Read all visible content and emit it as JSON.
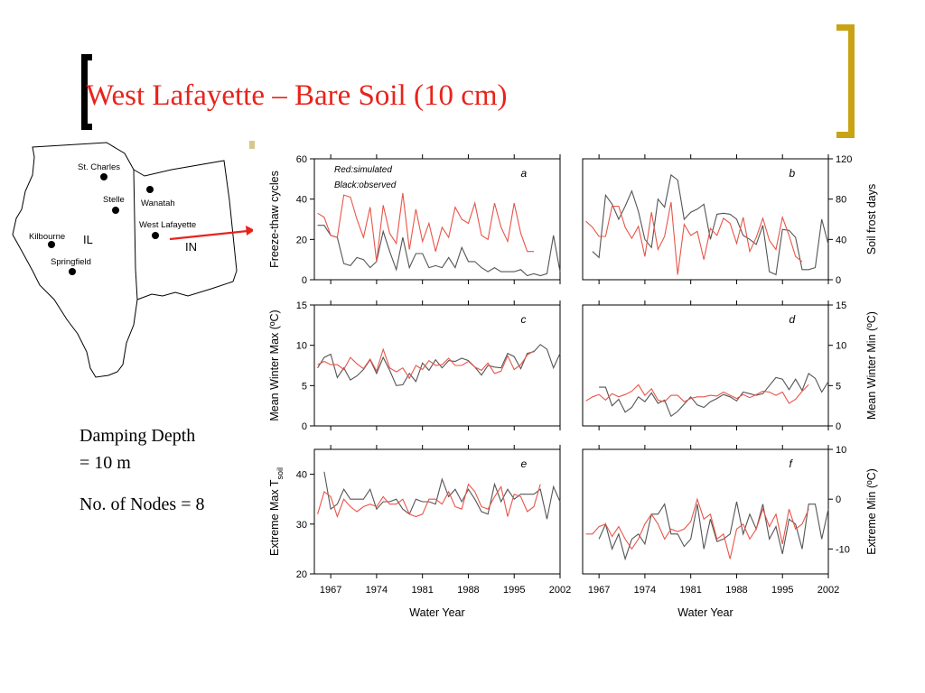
{
  "slide": {
    "title": "West Lafayette – Bare Soil (10 cm)",
    "notes": [
      "Damping Depth",
      "= 10 m",
      "No. of Nodes = 8"
    ],
    "colors": {
      "title": "#e8231c",
      "bracket_left": "#000000",
      "bracket_right": "#c8a415"
    }
  },
  "map": {
    "states": [
      "IL",
      "IN"
    ],
    "sites": [
      {
        "name": "St. Charles"
      },
      {
        "name": "Stelle"
      },
      {
        "name": "Wanatah"
      },
      {
        "name": "West Lafayette"
      },
      {
        "name": "Kilbourne"
      },
      {
        "name": "Springfield"
      }
    ],
    "arrow_color": "#e8231c"
  },
  "chart_data": {
    "type": "line",
    "xlabel": "Water Year",
    "x": [
      1965,
      1966,
      1967,
      1968,
      1969,
      1970,
      1971,
      1972,
      1973,
      1974,
      1975,
      1976,
      1977,
      1978,
      1979,
      1980,
      1981,
      1982,
      1983,
      1984,
      1985,
      1986,
      1987,
      1988,
      1989,
      1990,
      1991,
      1992,
      1993,
      1994,
      1995,
      1996,
      1997,
      1998,
      1999,
      2000,
      2001,
      2002
    ],
    "xticks": [
      1967,
      1974,
      1981,
      1988,
      1995,
      2002
    ],
    "series_legend": [
      "Red:simulated",
      "Black:observed"
    ],
    "series_colors": {
      "simulated": "#e8554a",
      "observed": "#555555"
    },
    "panels": [
      {
        "letter": "a",
        "ylabel": "Freeze-thaw cycles",
        "axis_side": "left",
        "ylim": [
          0,
          60
        ],
        "yticks": [
          0,
          20,
          40,
          60
        ],
        "legend": true,
        "simulated": [
          33,
          31,
          22,
          21,
          42,
          41,
          30,
          21,
          36,
          9,
          37,
          23,
          18,
          43,
          15,
          35,
          19,
          28,
          14,
          26,
          21,
          36,
          30,
          28,
          38,
          22,
          20,
          38,
          26,
          19,
          38,
          23,
          14,
          14,
          null,
          null,
          null,
          null
        ],
        "observed": [
          27,
          27,
          22,
          21,
          8,
          7,
          11,
          10,
          6,
          9,
          24,
          14,
          5,
          21,
          6,
          13,
          13,
          6,
          7,
          6,
          11,
          6,
          16,
          9,
          9,
          6,
          4,
          6,
          4,
          4,
          4,
          5,
          2,
          3,
          2,
          3,
          22,
          4
        ]
      },
      {
        "letter": "b",
        "ylabel": "Soil frost days",
        "axis_side": "right",
        "ylim": [
          0,
          120
        ],
        "yticks": [
          0,
          40,
          80,
          120
        ],
        "legend": false,
        "simulated": [
          58,
          52,
          43,
          43,
          73,
          73,
          52,
          41,
          53,
          23,
          67,
          30,
          43,
          77,
          5,
          55,
          44,
          48,
          20,
          51,
          44,
          61,
          56,
          36,
          62,
          28,
          42,
          61,
          39,
          30,
          62,
          44,
          23,
          18,
          null,
          null,
          null,
          null
        ],
        "observed": [
          null,
          28,
          22,
          84,
          75,
          60,
          73,
          88,
          68,
          40,
          32,
          80,
          72,
          104,
          99,
          60,
          67,
          70,
          75,
          40,
          65,
          66,
          65,
          60,
          44,
          40,
          35,
          54,
          8,
          5,
          50,
          49,
          42,
          10,
          10,
          12,
          60,
          35
        ]
      },
      {
        "letter": "c",
        "ylabel": "Mean Winter Max (ºC)",
        "axis_side": "left",
        "ylim": [
          0,
          15
        ],
        "yticks": [
          0,
          5,
          10,
          15
        ],
        "legend": false,
        "simulated": [
          7.6,
          8,
          7.6,
          7.6,
          7,
          8.5,
          7.7,
          7.1,
          8.3,
          6.8,
          9.5,
          7.2,
          6.7,
          7.2,
          5.9,
          7.5,
          7,
          8.1,
          7.5,
          7.6,
          8.4,
          7.5,
          7.5,
          8,
          7.3,
          6.9,
          7.8,
          6.5,
          6.8,
          8.7,
          7,
          7.6,
          8.8,
          9.3,
          null,
          null,
          null,
          null
        ],
        "observed": [
          7.2,
          8.5,
          8.9,
          6,
          7.2,
          5.7,
          6.2,
          7,
          8.2,
          6.5,
          8.5,
          6.9,
          5,
          5.1,
          6.5,
          5.5,
          7.8,
          6.9,
          8.2,
          7.2,
          8.1,
          8,
          8.4,
          8.1,
          7.3,
          6.3,
          7.5,
          7.3,
          7.2,
          9,
          8.6,
          7.1,
          9,
          9.2,
          10.1,
          9.5,
          7.2,
          9
        ]
      },
      {
        "letter": "d",
        "ylabel": "Mean Winter Min (ºC)",
        "axis_side": "right",
        "ylim": [
          0,
          15
        ],
        "yticks": [
          0,
          5,
          10,
          15
        ],
        "legend": false,
        "simulated": [
          3.1,
          3.6,
          3.9,
          3.2,
          4,
          3.6,
          3.9,
          4.3,
          5.1,
          3.8,
          4.6,
          3.2,
          3,
          3.8,
          3.8,
          3,
          3.4,
          3.6,
          3.6,
          3.8,
          3.7,
          4.2,
          3.8,
          3.4,
          3.9,
          3.5,
          3.9,
          4.3,
          4.2,
          3.8,
          4.2,
          2.8,
          3.3,
          4.3,
          5.1,
          null,
          null,
          null
        ],
        "observed": [
          null,
          null,
          4.8,
          4.8,
          2.5,
          3.3,
          1.7,
          2.3,
          3.6,
          3,
          4.1,
          2.8,
          3.2,
          1.2,
          1.8,
          2.7,
          3.6,
          2.6,
          2.3,
          3,
          3.4,
          3.9,
          3.6,
          3.1,
          4.2,
          4,
          3.8,
          4,
          5,
          6,
          5.8,
          4.5,
          5.8,
          4.4,
          6.5,
          5.9,
          4.2,
          5.5
        ]
      },
      {
        "letter": "e",
        "ylabel": "Extreme Max T",
        "ylabel_sub": "soil",
        "axis_side": "left",
        "ylim": [
          20,
          45
        ],
        "yticks": [
          20,
          30,
          40
        ],
        "legend": false,
        "simulated": [
          32,
          36.5,
          35.5,
          31.5,
          35,
          33.5,
          32.5,
          33.5,
          34,
          33.5,
          35.5,
          34,
          34,
          35,
          32,
          31.5,
          32,
          35,
          35,
          34,
          36.5,
          33.5,
          33,
          38,
          36.5,
          33.5,
          33,
          35.5,
          37.5,
          31.5,
          36,
          35.5,
          32.5,
          33.5,
          38,
          null,
          null,
          null
        ],
        "observed": [
          null,
          40.5,
          33,
          34,
          37,
          35,
          35,
          35,
          37,
          33,
          34.5,
          34.5,
          35,
          33,
          32,
          35,
          34.5,
          34.5,
          34,
          39,
          35.5,
          37,
          34.5,
          37,
          35,
          32.5,
          32,
          38,
          34.5,
          37,
          35,
          36,
          36,
          36,
          37,
          31,
          37.5,
          34.5
        ]
      },
      {
        "letter": "f",
        "ylabel": "Extreme Min (ºC)",
        "axis_side": "right",
        "ylim": [
          -15,
          10
        ],
        "yticks": [
          -10,
          0,
          10
        ],
        "legend": false,
        "simulated": [
          -7,
          -7,
          -5.5,
          -5,
          -7.5,
          -5.5,
          -8,
          -10,
          -8,
          -5,
          -3,
          -5,
          -8,
          -6,
          -6.5,
          -6,
          -4.5,
          0,
          -4,
          -3,
          -8,
          -7,
          -12,
          -6,
          -5,
          -8,
          -6,
          -2,
          -5.5,
          -3,
          -9,
          -2,
          -6,
          -5,
          -2,
          null,
          null,
          null
        ],
        "observed": [
          null,
          null,
          -8,
          -5,
          -10,
          -7,
          -12,
          -8,
          -7,
          -9,
          -3,
          -3,
          -1,
          -7,
          -7,
          -9.5,
          -8,
          -1,
          -10,
          -4,
          -8.5,
          -8,
          -7,
          -0.5,
          -7,
          -3,
          -6,
          -1,
          -8,
          -5.5,
          -11,
          -4,
          -5,
          -10,
          -1,
          -1,
          -8,
          -2
        ]
      }
    ]
  }
}
